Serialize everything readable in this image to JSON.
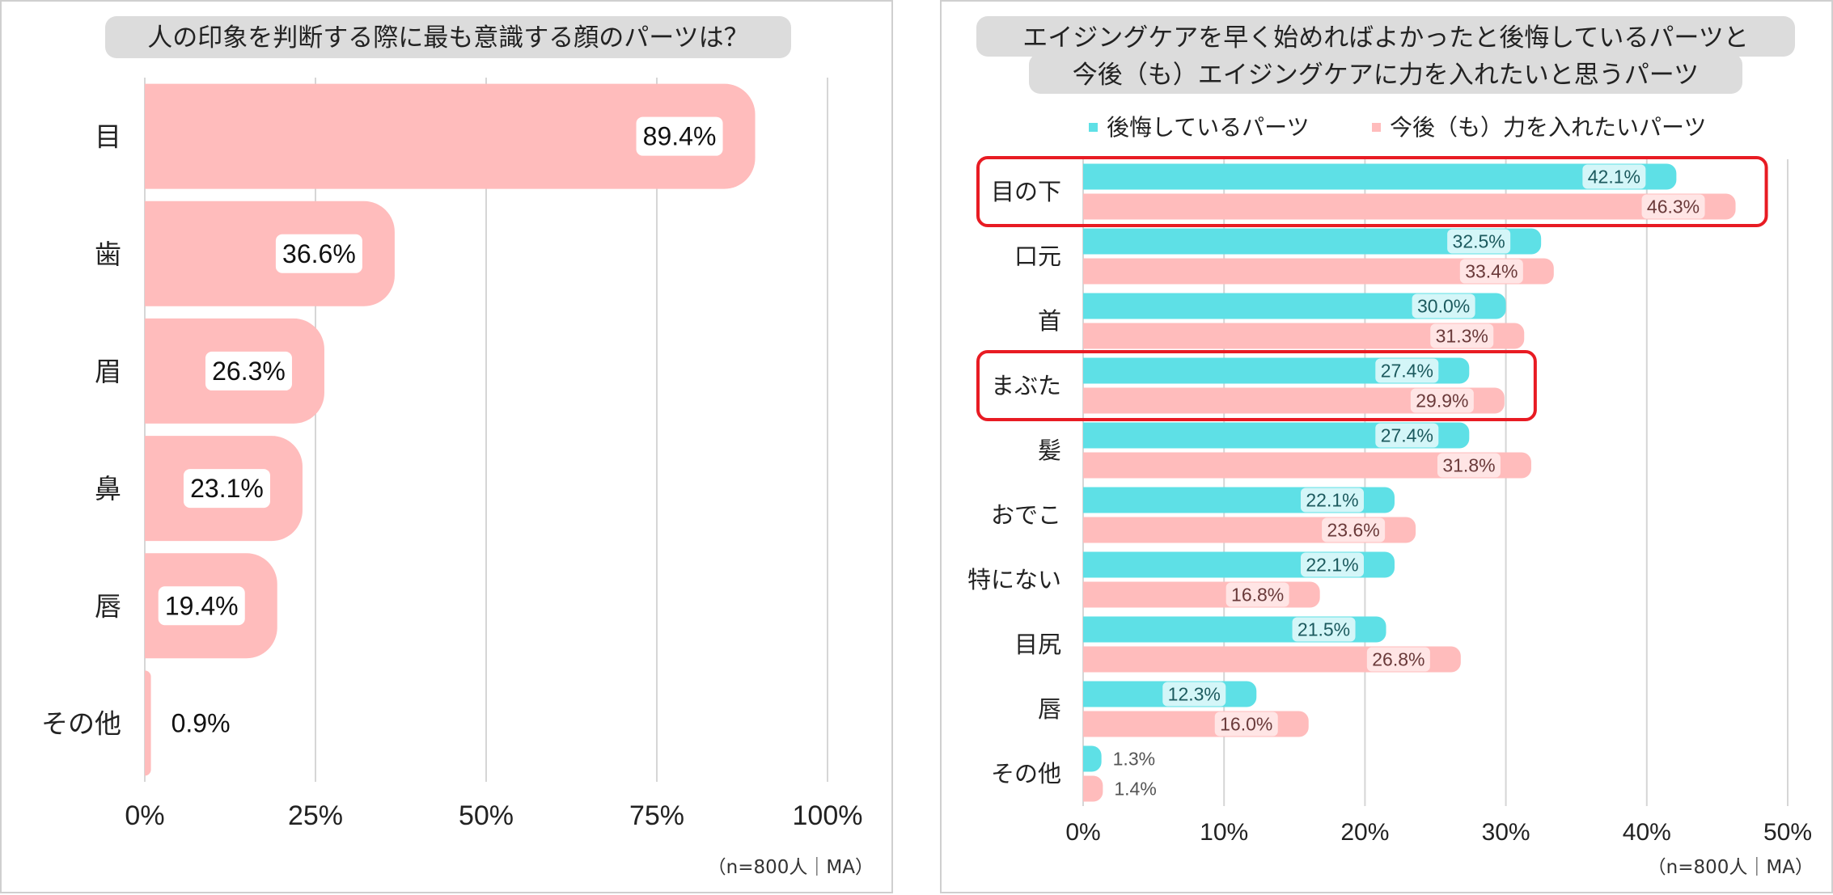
{
  "charts": {
    "left": {
      "title": "人の印象を判断する際に最も意識する顔のパーツは？",
      "note": "（n=800人｜MA）"
    },
    "right": {
      "title_line1": "エイジングケアを早く始めればよかったと後悔しているパーツと",
      "title_line2": "今後（も）エイジングケアに力を入れたいと思うパーツ",
      "note": "（n=800人｜MA）"
    }
  },
  "colors": {
    "pink": "#ffbcbc",
    "cyan": "#5ee0e6",
    "pink_label_bg": "#ffe5e5",
    "cyan_label_bg": "#d4f6f8",
    "highlight": "#e81b23"
  },
  "chart_data": [
    {
      "type": "bar",
      "orientation": "horizontal",
      "title": "人の印象を判断する際に最も意識する顔のパーツは？",
      "categories": [
        "目",
        "歯",
        "眉",
        "鼻",
        "唇",
        "その他"
      ],
      "values": [
        89.4,
        36.6,
        26.3,
        23.1,
        19.4,
        0.9
      ],
      "value_labels": [
        "89.4%",
        "36.6%",
        "26.3%",
        "23.1%",
        "19.4%",
        "0.9%"
      ],
      "xlim": [
        0,
        100
      ],
      "xticks": [
        "0%",
        "25%",
        "50%",
        "75%",
        "100%"
      ],
      "grid": true,
      "note": "（n=800人｜MA）"
    },
    {
      "type": "bar",
      "orientation": "horizontal",
      "title": "エイジングケアを早く始めればよかったと後悔しているパーツと今後（も）エイジングケアに力を入れたいと思うパーツ",
      "categories": [
        "目の下",
        "口元",
        "首",
        "まぶた",
        "髪",
        "おでこ",
        "特にない",
        "目尻",
        "唇",
        "その他"
      ],
      "series": [
        {
          "name": "後悔しているパーツ",
          "color": "#5ee0e6",
          "values": [
            42.1,
            32.5,
            30.0,
            27.4,
            27.4,
            22.1,
            22.1,
            21.5,
            12.3,
            1.3
          ],
          "value_labels": [
            "42.1%",
            "32.5%",
            "30.0%",
            "27.4%",
            "27.4%",
            "22.1%",
            "22.1%",
            "21.5%",
            "12.3%",
            "1.3%"
          ]
        },
        {
          "name": "今後（も）力を入れたいパーツ",
          "color": "#ffbcbc",
          "values": [
            46.3,
            33.4,
            31.3,
            29.9,
            31.8,
            23.6,
            16.8,
            26.8,
            16.0,
            1.4
          ],
          "value_labels": [
            "46.3%",
            "33.4%",
            "31.3%",
            "29.9%",
            "31.8%",
            "23.6%",
            "16.8%",
            "26.8%",
            "16.0%",
            "1.4%"
          ]
        }
      ],
      "highlighted_categories": [
        "目の下",
        "まぶた"
      ],
      "legend": "top",
      "xlim": [
        0,
        50
      ],
      "xticks": [
        "0%",
        "10%",
        "20%",
        "30%",
        "40%",
        "50%"
      ],
      "grid": true,
      "note": "（n=800人｜MA）"
    }
  ]
}
